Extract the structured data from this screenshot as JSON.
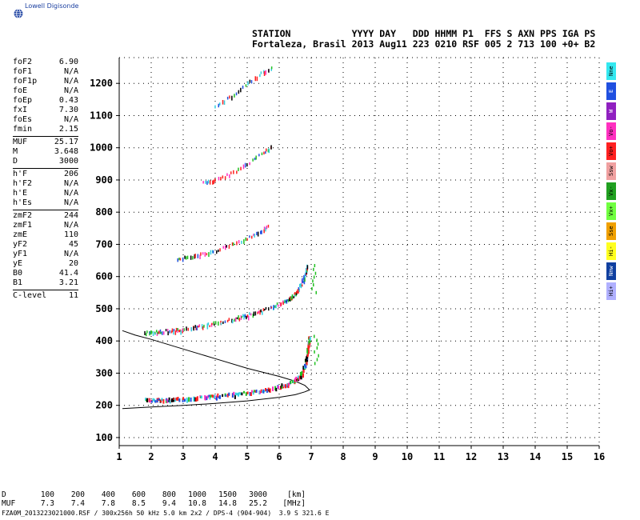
{
  "logo": {
    "text": "Lowell Digisonde",
    "icon": "globe-icon"
  },
  "header": {
    "line1": "STATION           YYYY DAY   DDD HHMM P1  FFS S AXN PPS IGA PS",
    "line2": "Fortaleza, Brasil 2013 Aug11 223 0210 RSF 005 2 713 100 +0+ B2"
  },
  "params": [
    {
      "name": "foF2",
      "value": "6.90"
    },
    {
      "name": "foF1",
      "value": "N/A"
    },
    {
      "name": "foF1p",
      "value": "N/A"
    },
    {
      "name": "foE",
      "value": "N/A"
    },
    {
      "name": "foEp",
      "value": "0.43"
    },
    {
      "name": "fxI",
      "value": "7.30"
    },
    {
      "name": "foEs",
      "value": "N/A"
    },
    {
      "name": "fmin",
      "value": "2.15"
    },
    {
      "sep": true
    },
    {
      "name": "MUF",
      "value": "25.17"
    },
    {
      "name": "M",
      "value": "3.648"
    },
    {
      "name": "D",
      "value": "3000"
    },
    {
      "sep": true
    },
    {
      "name": "h'F",
      "value": "206"
    },
    {
      "name": "h'F2",
      "value": "N/A"
    },
    {
      "name": "h'E",
      "value": "N/A"
    },
    {
      "name": "h'Es",
      "value": "N/A"
    },
    {
      "sep": true
    },
    {
      "name": "zmF2",
      "value": "244"
    },
    {
      "name": "zmF1",
      "value": "N/A"
    },
    {
      "name": "zmE",
      "value": "110"
    },
    {
      "name": "yF2",
      "value": "45"
    },
    {
      "name": "yF1",
      "value": "N/A"
    },
    {
      "name": "yE",
      "value": "20"
    },
    {
      "name": "B0",
      "value": "41.4"
    },
    {
      "name": "B1",
      "value": "3.21"
    },
    {
      "sep": true
    },
    {
      "name": "C-level",
      "value": "11"
    }
  ],
  "legend": [
    {
      "label": "Nne",
      "color": "#33e8f0"
    },
    {
      "label": "E",
      "color": "#2050e0"
    },
    {
      "label": "W",
      "color": "#9020c0"
    },
    {
      "label": "Vo-",
      "color": "#ff30c0"
    },
    {
      "label": "Vo+",
      "color": "#ff2020"
    },
    {
      "label": "Ssw",
      "color": "#f0a0a0"
    },
    {
      "label": "Vx-",
      "color": "#20a020"
    },
    {
      "label": "Vx+",
      "color": "#70ff40"
    },
    {
      "label": "Sse",
      "color": "#f0a000"
    },
    {
      "label": "Hi-",
      "color": "#ffff20"
    },
    {
      "label": "Nnw",
      "color": "#1040a0"
    },
    {
      "label": "Hi+",
      "color": "#b0b0ff"
    }
  ],
  "muf_table": {
    "d_label": "D",
    "d_values": [
      "100",
      "200",
      "400",
      "600",
      "800",
      "1000",
      "1500",
      "3000"
    ],
    "d_unit": "[km]",
    "muf_label": "MUF",
    "muf_values": [
      "7.3",
      "7.4",
      "7.8",
      "8.5",
      "9.4",
      "10.8",
      "14.8",
      "25.2"
    ],
    "muf_unit": "[MHz]"
  },
  "footer": "FZA0M_2013223021000.RSF / 300x256h 50 kHz 5.0 km 2x2 / DPS-4 (904-904)  3.9 S 321.6 E",
  "chart_data": {
    "type": "scatter",
    "xlim": [
      1,
      16
    ],
    "ylim": [
      75,
      1280
    ],
    "xticks": [
      1,
      2,
      3,
      4,
      5,
      6,
      7,
      8,
      9,
      10,
      11,
      12,
      13,
      14,
      15,
      16
    ],
    "yticks": [
      100,
      200,
      300,
      400,
      500,
      600,
      700,
      800,
      900,
      1000,
      1100,
      1200
    ],
    "grid": true,
    "traces": [
      {
        "name": "first hop",
        "points": [
          [
            1.8,
            217
          ],
          [
            2.2,
            217
          ],
          [
            2.6,
            218
          ],
          [
            3.0,
            220
          ],
          [
            3.5,
            225
          ],
          [
            4.0,
            230
          ],
          [
            4.5,
            234
          ],
          [
            5.0,
            240
          ],
          [
            5.5,
            248
          ],
          [
            6.0,
            258
          ],
          [
            6.3,
            268
          ],
          [
            6.5,
            280
          ],
          [
            6.7,
            300
          ],
          [
            6.8,
            330
          ],
          [
            6.85,
            360
          ],
          [
            6.9,
            390
          ],
          [
            6.92,
            415
          ]
        ]
      },
      {
        "name": "second hop",
        "points": [
          [
            1.8,
            425
          ],
          [
            2.2,
            428
          ],
          [
            2.6,
            432
          ],
          [
            3.0,
            437
          ],
          [
            3.5,
            445
          ],
          [
            4.0,
            455
          ],
          [
            4.5,
            467
          ],
          [
            5.0,
            480
          ],
          [
            5.5,
            497
          ],
          [
            6.0,
            515
          ],
          [
            6.3,
            530
          ],
          [
            6.5,
            550
          ],
          [
            6.7,
            580
          ],
          [
            6.8,
            610
          ],
          [
            6.85,
            635
          ]
        ]
      },
      {
        "name": "third hop",
        "points": [
          [
            2.8,
            655
          ],
          [
            3.2,
            660
          ],
          [
            3.6,
            670
          ],
          [
            4.0,
            680
          ],
          [
            4.5,
            700
          ],
          [
            5.0,
            718
          ],
          [
            5.4,
            740
          ],
          [
            5.7,
            760
          ]
        ]
      },
      {
        "name": "fourth hop",
        "points": [
          [
            3.6,
            890
          ],
          [
            4.0,
            900
          ],
          [
            4.5,
            920
          ],
          [
            5.0,
            950
          ],
          [
            5.5,
            985
          ],
          [
            5.8,
            1005
          ]
        ]
      },
      {
        "name": "fifth hop",
        "points": [
          [
            4.0,
            1130
          ],
          [
            4.5,
            1160
          ],
          [
            5.0,
            1200
          ],
          [
            5.5,
            1235
          ],
          [
            5.8,
            1250
          ]
        ]
      }
    ],
    "model_curve": [
      [
        1.1,
        190
      ],
      [
        2,
        195
      ],
      [
        3,
        200
      ],
      [
        4,
        206
      ],
      [
        5,
        214
      ],
      [
        6,
        225
      ],
      [
        6.5,
        233
      ],
      [
        6.8,
        242
      ],
      [
        6.95,
        248
      ],
      [
        6.8,
        262
      ],
      [
        6.5,
        275
      ],
      [
        6,
        290
      ],
      [
        5,
        315
      ],
      [
        4,
        345
      ],
      [
        3,
        375
      ],
      [
        2,
        405
      ],
      [
        1.5,
        418
      ],
      [
        1.1,
        432
      ]
    ],
    "colors": {
      "o_red": "#ff2020",
      "o_magenta": "#ff30c0",
      "x_green": "#20c020",
      "blue": "#2050e0",
      "cyan": "#33d0e0",
      "black": "#000000"
    }
  }
}
